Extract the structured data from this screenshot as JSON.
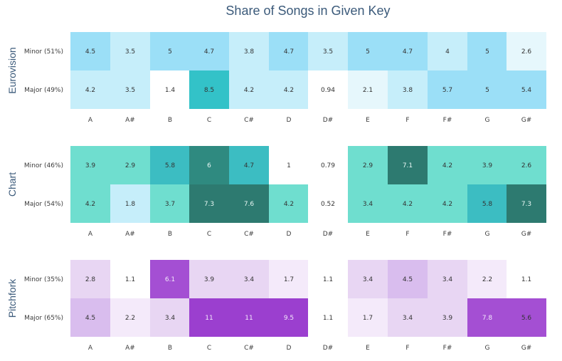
{
  "chart_data": {
    "type": "heatmap",
    "title": "Share of Songs in Given Key",
    "keys": [
      "A",
      "A#",
      "B",
      "C",
      "C#",
      "D",
      "D#",
      "E",
      "F",
      "F#",
      "G",
      "G#"
    ],
    "panels": [
      {
        "name": "Eurovision",
        "palette": "blue",
        "rows": [
          {
            "label": "Minor (51%)",
            "values": [
              4.5,
              3.5,
              5,
              4.7,
              3.8,
              4.7,
              3.5,
              5,
              4.7,
              4,
              5,
              2.6
            ]
          },
          {
            "label": "Major (49%)",
            "values": [
              4.2,
              3.5,
              1.4,
              8.5,
              4.2,
              4.2,
              0.94,
              2.1,
              3.8,
              5.7,
              5,
              5.4
            ]
          }
        ]
      },
      {
        "name": "Chart",
        "palette": "teal",
        "rows": [
          {
            "label": "Minor (46%)",
            "values": [
              3.9,
              2.9,
              5.8,
              6,
              4.7,
              1,
              0.79,
              2.9,
              7.1,
              4.2,
              3.9,
              2.6
            ]
          },
          {
            "label": "Major (54%)",
            "values": [
              4.2,
              1.8,
              3.7,
              7.3,
              7.6,
              4.2,
              0.52,
              3.4,
              4.2,
              4.2,
              5.8,
              7.3
            ]
          }
        ]
      },
      {
        "name": "Pitchfork",
        "palette": "purple",
        "rows": [
          {
            "label": "Minor (35%)",
            "values": [
              2.8,
              1.1,
              6.1,
              3.9,
              3.4,
              1.7,
              1.1,
              3.4,
              4.5,
              3.4,
              2.2,
              1.1
            ]
          },
          {
            "label": "Major (65%)",
            "values": [
              4.5,
              2.2,
              3.4,
              11,
              11,
              9.5,
              1.1,
              1.7,
              3.4,
              3.9,
              7.8,
              5.6
            ]
          }
        ]
      }
    ],
    "colors": {
      "blue": [
        "#ffffff",
        "#c6eefa",
        "#9bdff7",
        "#33c2c8"
      ],
      "teal": [
        "#ffffff",
        "#c6eefa",
        "#6fdecf",
        "#3cbdc2",
        "#2f8a80",
        "#2d7a70"
      ],
      "purple": [
        "#ffffff",
        "#e8d6f3",
        "#d9bdee",
        "#a44fd3",
        "#9b3fcf"
      ]
    }
  }
}
